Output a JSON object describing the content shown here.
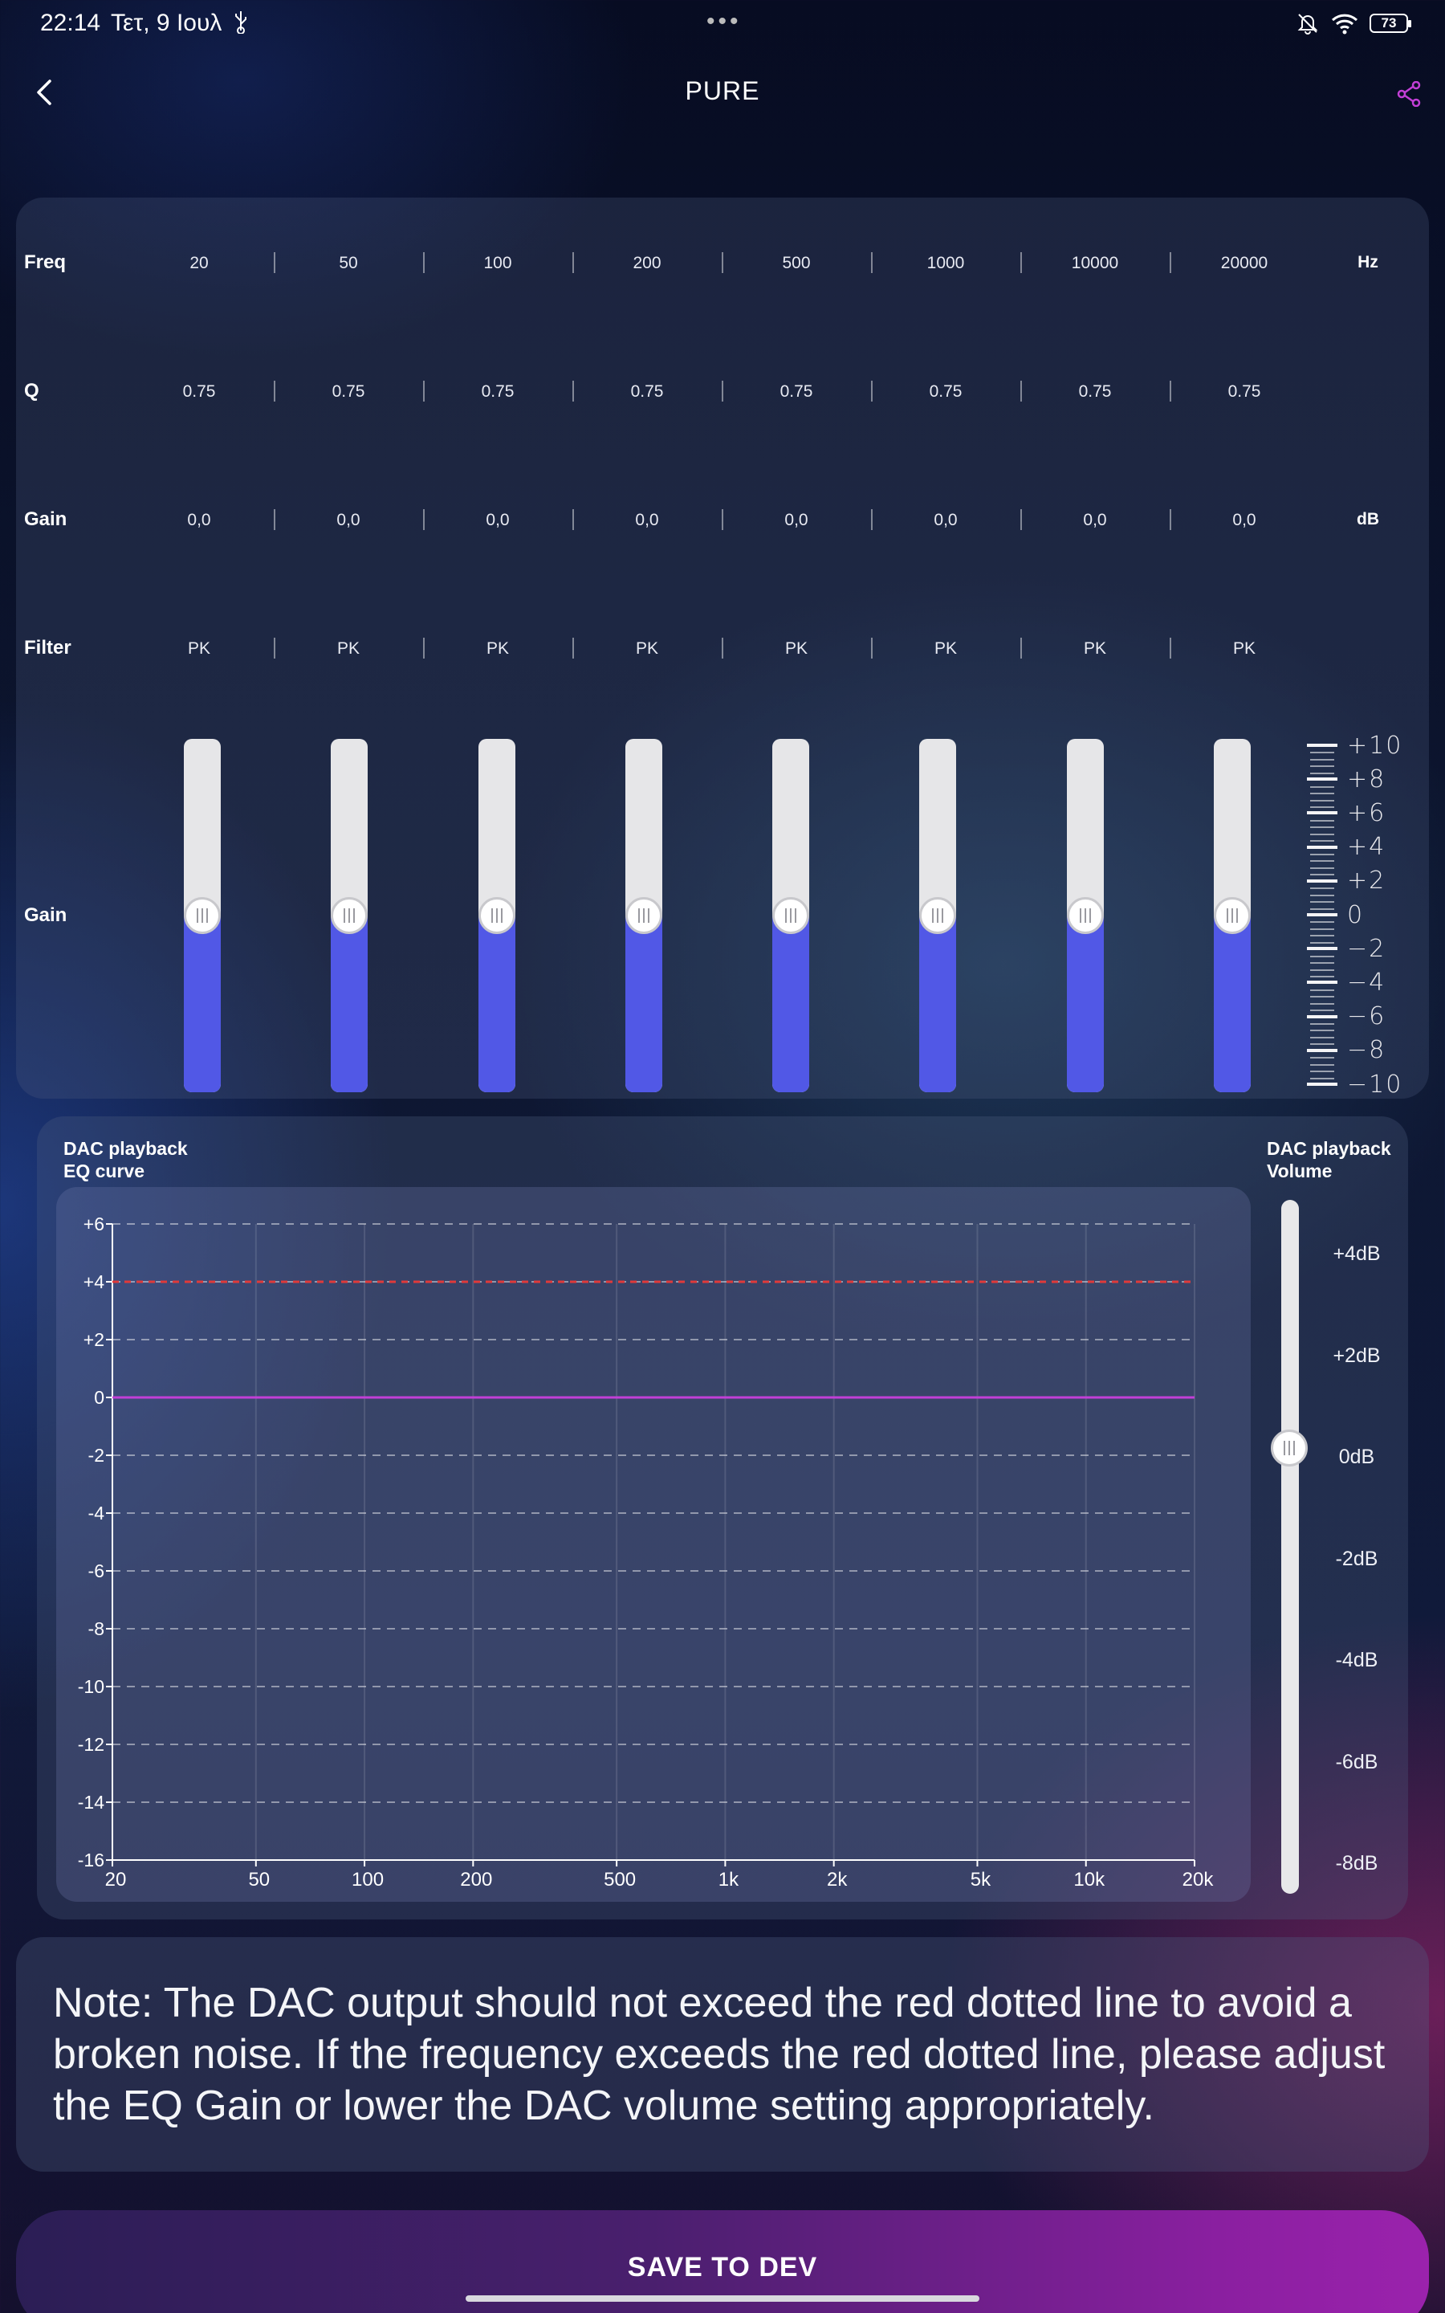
{
  "status_bar": {
    "time": "22:14",
    "date": "Τετ, 9 Ιουλ",
    "usb_icon": "usb-icon",
    "dots": "•••",
    "battery": "73"
  },
  "header": {
    "title": "PURE",
    "back_icon": "chevron-left-icon",
    "share_icon": "share-icon"
  },
  "eq": {
    "row_labels": {
      "freq": "Freq",
      "q": "Q",
      "gain": "Gain",
      "filter": "Filter",
      "slider_gain": "Gain"
    },
    "units": {
      "freq": "Hz",
      "gain": "dB"
    },
    "bands": [
      {
        "freq": "20",
        "q": "0.75",
        "gain": "0,0",
        "filter": "PK",
        "level": 0.5
      },
      {
        "freq": "50",
        "q": "0.75",
        "gain": "0,0",
        "filter": "PK",
        "level": 0.5
      },
      {
        "freq": "100",
        "q": "0.75",
        "gain": "0,0",
        "filter": "PK",
        "level": 0.5
      },
      {
        "freq": "200",
        "q": "0.75",
        "gain": "0,0",
        "filter": "PK",
        "level": 0.5
      },
      {
        "freq": "500",
        "q": "0.75",
        "gain": "0,0",
        "filter": "PK",
        "level": 0.5
      },
      {
        "freq": "1000",
        "q": "0.75",
        "gain": "0,0",
        "filter": "PK",
        "level": 0.5
      },
      {
        "freq": "10000",
        "q": "0.75",
        "gain": "0,0",
        "filter": "PK",
        "level": 0.5
      },
      {
        "freq": "20000",
        "q": "0.75",
        "gain": "0,0",
        "filter": "PK",
        "level": 0.5
      }
    ],
    "scale_labels": [
      "+10",
      "+8",
      "+6",
      "+4",
      "+2",
      "0",
      "−2",
      "−4",
      "−6",
      "−8",
      "−10"
    ]
  },
  "dac": {
    "curve_title_line1": "DAC playback",
    "curve_title_line2": "EQ curve",
    "volume_title_line1": "DAC playback",
    "volume_title_line2": "Volume",
    "volume_labels": [
      "+4dB",
      "+2dB",
      "0dB",
      "-2dB",
      "-4dB",
      "-6dB",
      "-8dB"
    ],
    "volume_level_db": 0
  },
  "chart_data": {
    "type": "line",
    "title": "",
    "xlabel": "",
    "ylabel": "",
    "x_scale": "log",
    "xlim": [
      20,
      20000
    ],
    "ylim": [
      -16,
      6
    ],
    "x_ticks": [
      {
        "v": 20,
        "label": "20"
      },
      {
        "v": 50,
        "label": "50"
      },
      {
        "v": 100,
        "label": "100"
      },
      {
        "v": 200,
        "label": "200"
      },
      {
        "v": 500,
        "label": "500"
      },
      {
        "v": 1000,
        "label": "1k"
      },
      {
        "v": 2000,
        "label": "2k"
      },
      {
        "v": 5000,
        "label": "5k"
      },
      {
        "v": 10000,
        "label": "10k"
      },
      {
        "v": 20000,
        "label": "20k"
      }
    ],
    "y_ticks": [
      {
        "v": 6,
        "label": "+6"
      },
      {
        "v": 4,
        "label": "+4"
      },
      {
        "v": 2,
        "label": "+2"
      },
      {
        "v": 0,
        "label": "0"
      },
      {
        "v": -2,
        "label": "-2"
      },
      {
        "v": -4,
        "label": "-4"
      },
      {
        "v": -6,
        "label": "-6"
      },
      {
        "v": -8,
        "label": "-8"
      },
      {
        "v": -10,
        "label": "-10"
      },
      {
        "v": -12,
        "label": "-12"
      },
      {
        "v": -14,
        "label": "-14"
      },
      {
        "v": -16,
        "label": "-16"
      }
    ],
    "limit_line": {
      "y": 4,
      "color": "#e03a3a",
      "style": "dotted"
    },
    "series": [
      {
        "x": [
          20,
          20000
        ],
        "y": [
          0,
          0
        ],
        "color": "#c23fd6"
      }
    ],
    "grid": true
  },
  "note": {
    "text": "Note: The DAC output should not exceed the red dotted line to avoid a broken noise. If the frequency exceeds the red dotted line, please adjust the EQ Gain or lower the DAC volume setting appropriately."
  },
  "save": {
    "label": "SAVE TO DEV"
  },
  "colors": {
    "slider_fill": "#5158e6",
    "curve": "#c23fd6",
    "limit": "#e03a3a",
    "save_gradient_end": "#9b22ad"
  }
}
